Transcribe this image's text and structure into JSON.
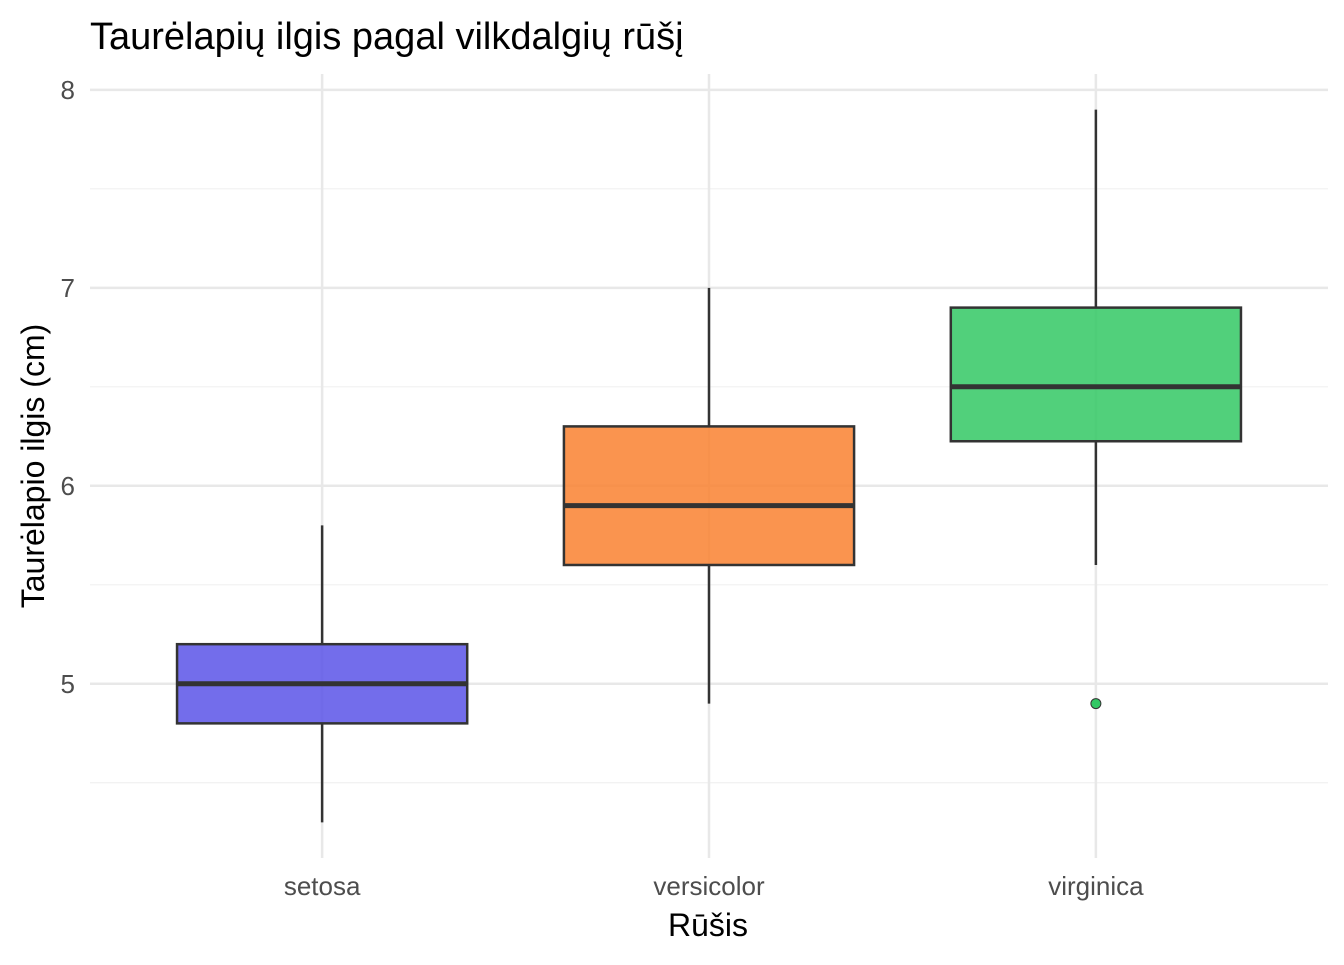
{
  "chart_data": {
    "type": "boxplot",
    "title": "Taurėlapių ilgis pagal vilkdalgių rūšį",
    "xlabel": "Rūšis",
    "ylabel": "Taurėlapio ilgis (cm)",
    "ylim": [
      4.12,
      8.08
    ],
    "yticks": [
      5,
      6,
      7,
      8
    ],
    "yticks_minor": [
      4.5,
      5.5,
      6.5,
      7.5
    ],
    "grid": true,
    "legend": "none",
    "categories": [
      "setosa",
      "versicolor",
      "virginica"
    ],
    "boxes": [
      {
        "name": "setosa",
        "whisker_low": 4.3,
        "q1": 4.8,
        "median": 5.0,
        "q3": 5.2,
        "whisker_high": 5.8,
        "outliers": [],
        "color": "#5B53E8"
      },
      {
        "name": "versicolor",
        "whisker_low": 4.9,
        "q1": 5.6,
        "median": 5.9,
        "q3": 6.3,
        "whisker_high": 7.0,
        "outliers": [],
        "color": "#F98130"
      },
      {
        "name": "virginica",
        "whisker_low": 5.6,
        "q1": 6.225,
        "median": 6.5,
        "q3": 6.9,
        "whisker_high": 7.9,
        "outliers": [
          4.9
        ],
        "color": "#32C864"
      }
    ]
  }
}
